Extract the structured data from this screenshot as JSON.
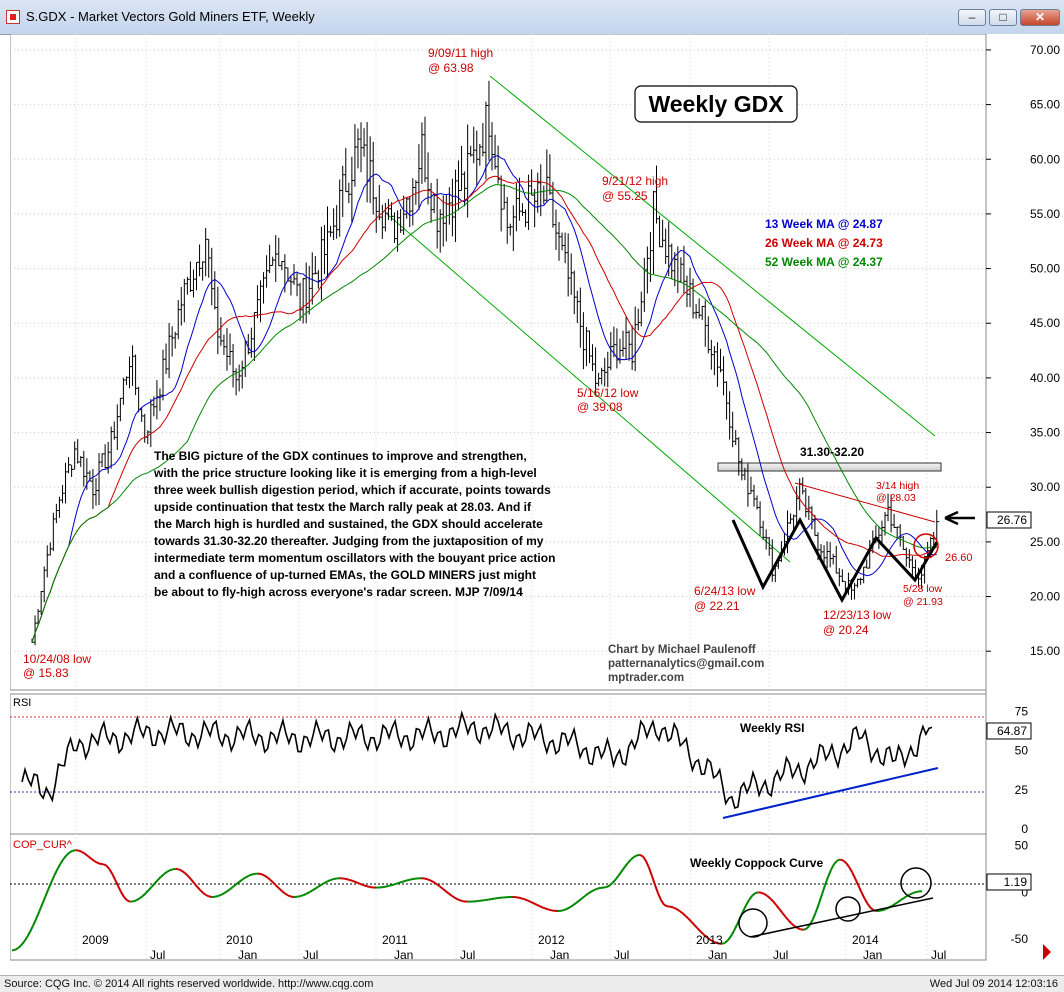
{
  "window": {
    "title": "S.GDX - Market Vectors Gold Miners ETF, Weekly",
    "buttons": {
      "minimize": "–",
      "restore": "□",
      "close": "✕"
    }
  },
  "status_bar": {
    "left": "Source: CQG Inc. © 2014 All rights reserved worldwide. http://www.cqg.com",
    "right": "Wed Jul 09 2014 12:03:16"
  },
  "colors": {
    "price_bar": "#000000",
    "ma13": "#0000cc",
    "ma26": "#cc0000",
    "ma52": "#008800",
    "channel": "#00aa00",
    "annotation": "#cc0000",
    "trend": "#0000cc",
    "coppock_up": "#008800",
    "coppock_down": "#cc0000"
  },
  "chart_data": [
    {
      "type": "ohlc",
      "panel": "price",
      "title": "Weekly GDX",
      "y_ticks": [
        "70.00",
        "65.00",
        "60.00",
        "55.00",
        "50.00",
        "45.00",
        "40.00",
        "35.00",
        "30.00",
        "25.00",
        "20.00",
        "15.00"
      ],
      "ylim": [
        12,
        71
      ],
      "last_price": "26.76",
      "x_labels": [
        "2009",
        "Jul",
        "2010",
        "Jan",
        "Jul",
        "2011",
        "Jan",
        "Jul",
        "2012",
        "Jan",
        "Jul",
        "2013",
        "Jan",
        "Jul",
        "2014",
        "Jan",
        "Jul"
      ],
      "close_path": [
        [
          "2008-10-24",
          15.83
        ],
        [
          "2008-11-21",
          22.5
        ],
        [
          "2008-12-26",
          29.0
        ],
        [
          "2009-01-30",
          33.5
        ],
        [
          "2009-03-13",
          30.0
        ],
        [
          "2009-04-24",
          34.0
        ],
        [
          "2009-06-05",
          42.0
        ],
        [
          "2009-07-10",
          35.0
        ],
        [
          "2009-08-21",
          40.5
        ],
        [
          "2009-10-02",
          47.0
        ],
        [
          "2009-11-27",
          53.0
        ],
        [
          "2009-12-18",
          45.0
        ],
        [
          "2010-02-05",
          40.0
        ],
        [
          "2010-03-26",
          46.0
        ],
        [
          "2010-05-14",
          52.0
        ],
        [
          "2010-07-02",
          47.0
        ],
        [
          "2010-09-03",
          52.0
        ],
        [
          "2010-10-15",
          58.0
        ],
        [
          "2010-11-12",
          61.0
        ],
        [
          "2010-12-10",
          58.5
        ],
        [
          "2011-01-28",
          53.5
        ],
        [
          "2011-03-11",
          57.0
        ],
        [
          "2011-04-08",
          61.0
        ],
        [
          "2011-05-13",
          55.0
        ],
        [
          "2011-07-15",
          58.0
        ],
        [
          "2011-09-09",
          63.98
        ],
        [
          "2011-10-21",
          54.0
        ],
        [
          "2011-12-09",
          56.0
        ],
        [
          "2012-01-20",
          56.5
        ],
        [
          "2012-03-02",
          50.0
        ],
        [
          "2012-05-16",
          39.08
        ],
        [
          "2012-06-29",
          43.0
        ],
        [
          "2012-08-03",
          42.5
        ],
        [
          "2012-09-21",
          55.25
        ],
        [
          "2012-11-09",
          50.0
        ],
        [
          "2013-01-04",
          46.0
        ],
        [
          "2013-02-22",
          41.0
        ],
        [
          "2013-04-12",
          31.0
        ],
        [
          "2013-05-10",
          29.5
        ],
        [
          "2013-06-24",
          22.21
        ],
        [
          "2013-07-19",
          25.5
        ],
        [
          "2013-08-23",
          29.5
        ],
        [
          "2013-10-04",
          25.0
        ],
        [
          "2013-12-23",
          20.24
        ],
        [
          "2014-02-07",
          24.5
        ],
        [
          "2014-03-14",
          28.03
        ],
        [
          "2014-04-25",
          23.5
        ],
        [
          "2014-05-28",
          21.93
        ],
        [
          "2014-07-09",
          26.76
        ]
      ],
      "moving_averages": [
        {
          "name": "13 Week MA",
          "value": "24.87",
          "label": "13 Week MA @ 24.87"
        },
        {
          "name": "26 Week MA",
          "value": "24.73",
          "label": "26 Week MA @ 24.73"
        },
        {
          "name": "52 Week MA",
          "value": "24.37",
          "label": "52 Week MA @ 24.37"
        }
      ],
      "annotations": [
        {
          "id": "high-2011",
          "line1": "9/09/11 high",
          "line2": "@ 63.98",
          "date": "2011-09-09",
          "value": 63.98
        },
        {
          "id": "high-2012",
          "line1": "9/21/12 high",
          "line2": "@ 55.25",
          "date": "2012-09-21",
          "value": 55.25
        },
        {
          "id": "low-2012",
          "line1": "5/16/12 low",
          "line2": "@ 39.08",
          "date": "2012-05-16",
          "value": 39.08
        },
        {
          "id": "low-2008",
          "line1": "10/24/08 low",
          "line2": "@ 15.83",
          "date": "2008-10-24",
          "value": 15.83
        },
        {
          "id": "low-2013a",
          "line1": "6/24/13 low",
          "line2": "@ 22.21",
          "date": "2013-06-24",
          "value": 22.21
        },
        {
          "id": "low-2013b",
          "line1": "12/23/13 low",
          "line2": "@ 20.24",
          "date": "2013-12-23",
          "value": 20.24
        },
        {
          "id": "high-2014",
          "line1": "3/14 high",
          "line2": "@ 28.03",
          "date": "2014-03-14",
          "value": 28.03
        },
        {
          "id": "low-2014",
          "line1": "5/28 low",
          "line2": "@ 21.93",
          "date": "2014-05-28",
          "value": 21.93
        }
      ],
      "resistance_label": "31.30-32.20",
      "resistance_zone": [
        31.3,
        32.2
      ],
      "circle_label": "26.60",
      "commentary": [
        "The BIG picture of the GDX continues to improve and strengthen,",
        "with the price structure looking like it is emerging from a high-level",
        "three week bullish digestion period, which if accurate, points towards",
        "upside continuation that testx the March rally peak at 28.03. And if",
        "the March high is hurdled and sustained, the GDX should accelerate",
        "towards 31.30-32.20 thereafter. Judging from the juxtaposition of my",
        "intermediate term momentum oscillators with the bouyant price action",
        "and a confluence of up-turned EMAs, the GOLD MINERS just might",
        "be about to fly-high across everyone's radar screen. MJP  7/09/14"
      ],
      "credit": [
        "Chart by Michael Paulenoff",
        "patternanalytics@gmail.com",
        "mptrader.com"
      ]
    },
    {
      "type": "line",
      "panel": "rsi",
      "label": "RSI",
      "title": "Weekly RSI",
      "y_ticks": [
        "75",
        "50",
        "25",
        "0"
      ],
      "ylim": [
        0,
        83
      ],
      "last_value": "64.87",
      "reference_levels": [
        75,
        25
      ]
    },
    {
      "type": "line",
      "panel": "coppock",
      "label": "COP_CUR^",
      "title": "Weekly Coppock Curve",
      "y_ticks": [
        "50",
        "0",
        "-50"
      ],
      "ylim": [
        -68,
        58
      ],
      "last_value": "1.19",
      "reference_level": 0
    }
  ]
}
